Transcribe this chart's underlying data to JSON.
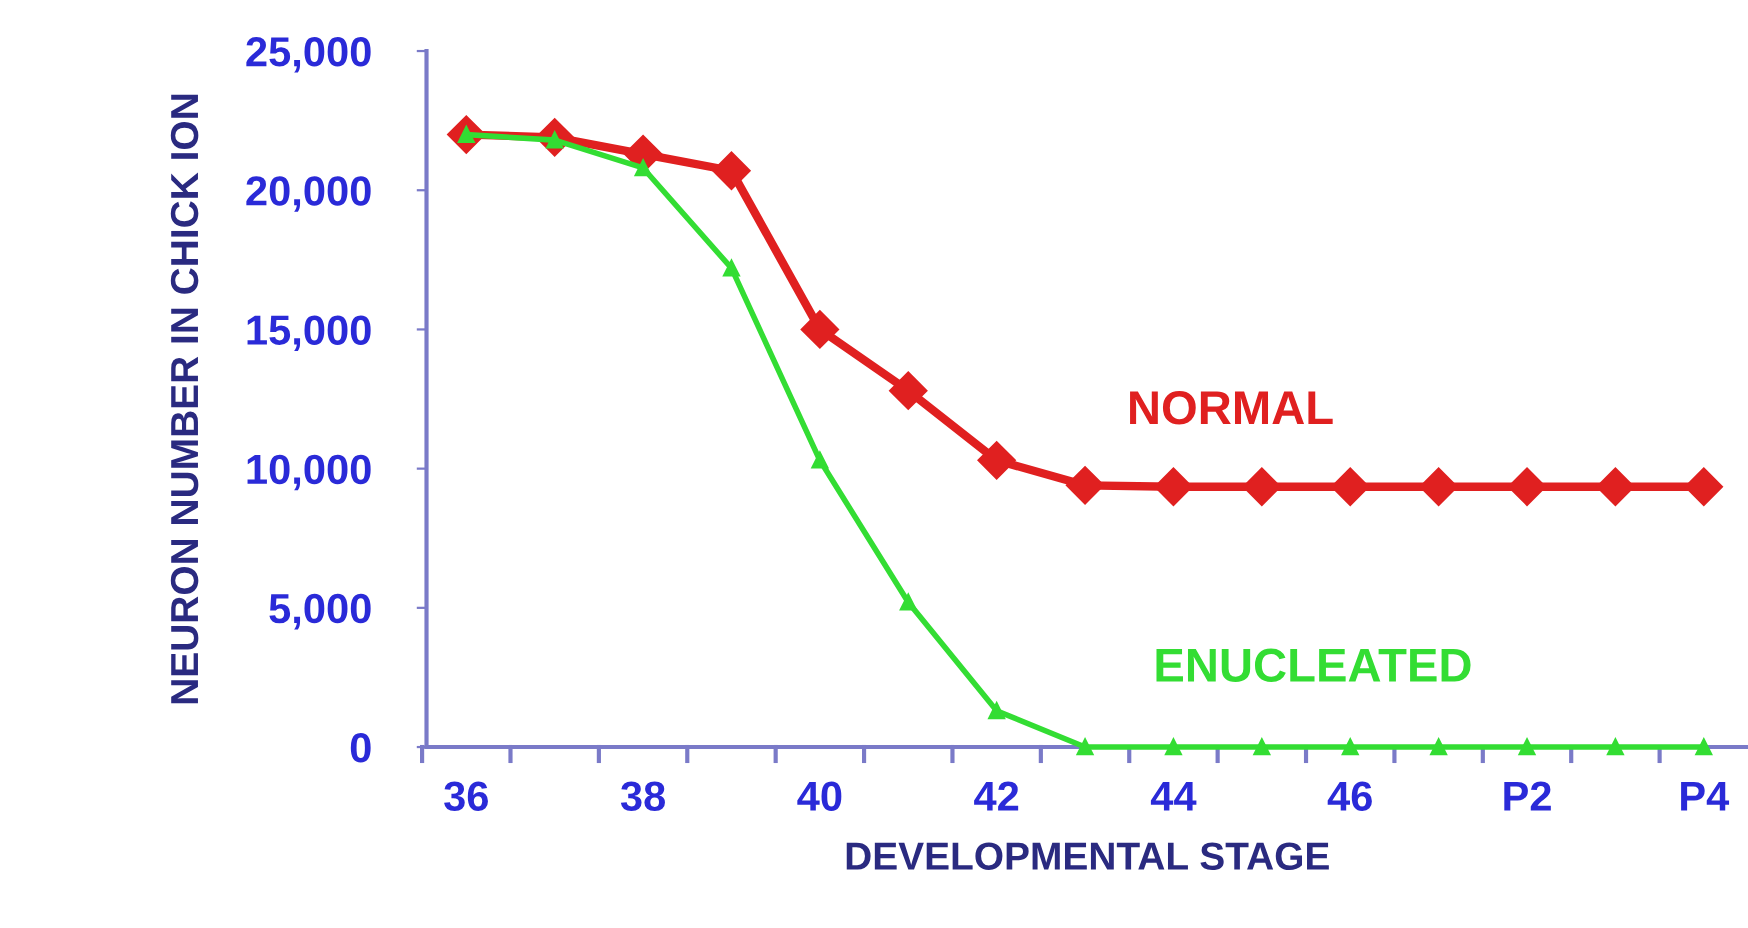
{
  "chart_data": {
    "type": "line",
    "xlabel": "DEVELOPMENTAL STAGE",
    "ylabel": "NEURON NUMBER IN CHICK ION",
    "categories": [
      "36",
      null,
      "38",
      null,
      "40",
      null,
      "42",
      null,
      "44",
      null,
      "46",
      null,
      "P2",
      null,
      "P4"
    ],
    "series": [
      {
        "name": "NORMAL",
        "color": "#e02020",
        "marker": "diamond",
        "values": [
          22000,
          21900,
          21300,
          20700,
          15000,
          12800,
          10300,
          9400,
          9350,
          9350,
          9350,
          9350,
          9350,
          9350,
          9350
        ]
      },
      {
        "name": "ENUCLEATED",
        "color": "#33dd33",
        "marker": "triangle",
        "values": [
          22000,
          21800,
          20800,
          17200,
          10300,
          5200,
          1300,
          0,
          0,
          0,
          0,
          0,
          0,
          0,
          0
        ]
      }
    ],
    "ylim": [
      0,
      25000
    ],
    "yticks": [
      {
        "value": 0,
        "label": "0"
      },
      {
        "value": 5000,
        "label": "5,000"
      },
      {
        "value": 10000,
        "label": "10,000"
      },
      {
        "value": 15000,
        "label": "15,000"
      },
      {
        "value": 20000,
        "label": "20,000"
      },
      {
        "value": 25000,
        "label": "25,000"
      }
    ],
    "grid": false,
    "legend": false
  }
}
